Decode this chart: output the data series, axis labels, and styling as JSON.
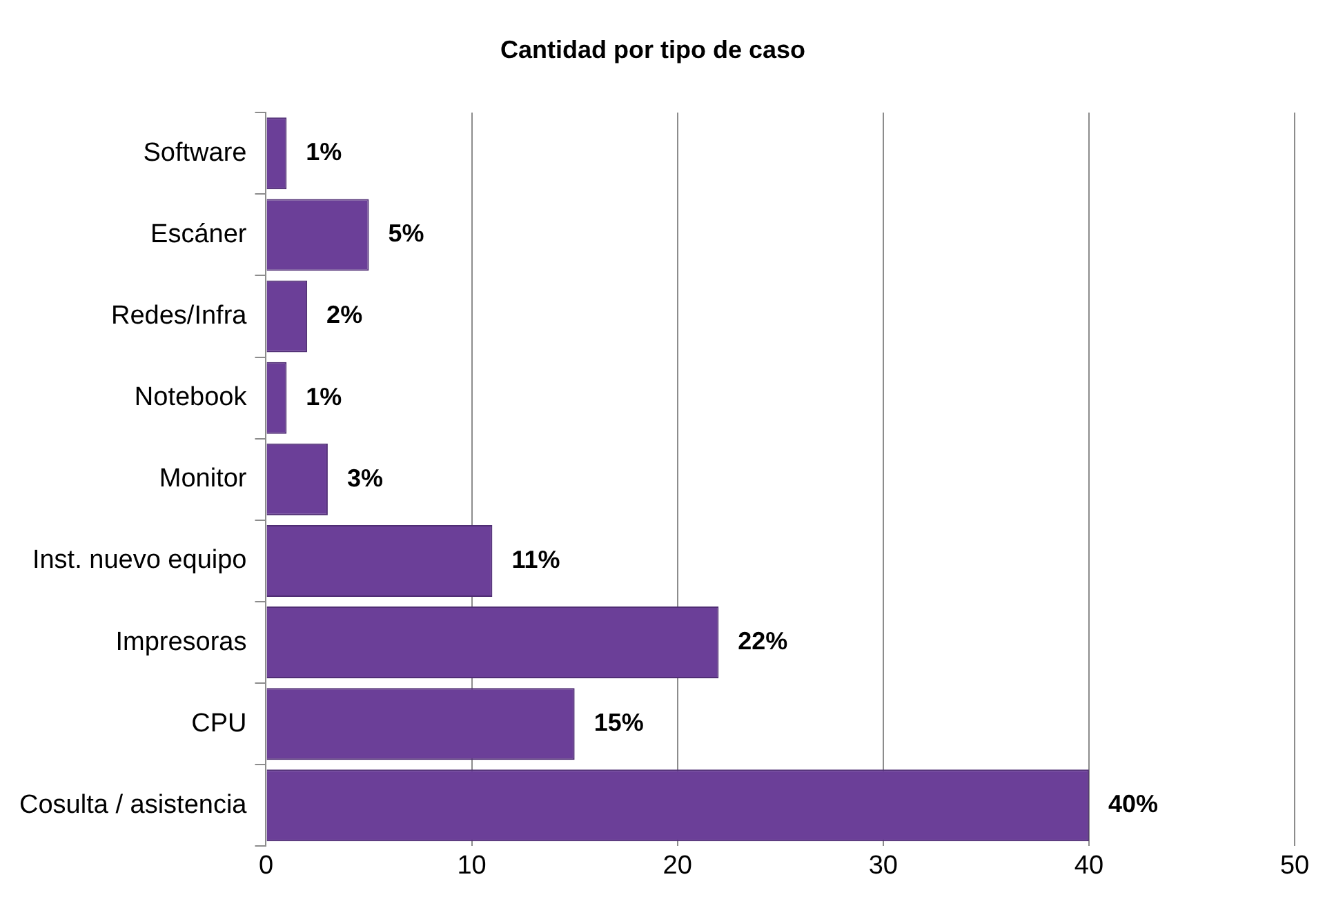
{
  "chart_data": {
    "type": "bar",
    "orientation": "horizontal",
    "title": "Cantidad por tipo de caso",
    "categories": [
      "Software",
      "Escáner",
      "Redes/Infra",
      "Notebook",
      "Monitor",
      "Inst. nuevo equipo",
      "Impresoras",
      "CPU",
      "Cosulta / asistencia"
    ],
    "values": [
      1,
      5,
      2,
      1,
      3,
      11,
      22,
      15,
      40
    ],
    "value_labels": [
      "1%",
      "5%",
      "2%",
      "1%",
      "3%",
      "11%",
      "22%",
      "15%",
      "40%"
    ],
    "color": "#6b3f98",
    "xlim": [
      0,
      50
    ],
    "xticks": [
      0,
      10,
      20,
      30,
      40,
      50
    ],
    "grid": "x",
    "legend": false
  }
}
